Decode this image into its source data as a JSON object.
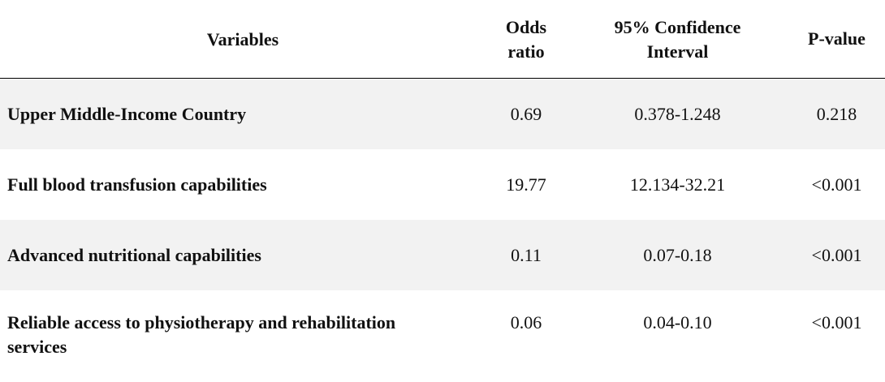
{
  "table": {
    "headers": {
      "variables": "Variables",
      "odds_ratio_line1": "Odds",
      "odds_ratio_line2": "ratio",
      "ci_line1": "95% Confidence",
      "ci_line2": "Interval",
      "p_value": "P-value"
    },
    "rows": [
      {
        "variable": "Upper Middle-Income Country",
        "odds_ratio": "0.69",
        "ci": "0.378-1.248",
        "p_value": "0.218"
      },
      {
        "variable": "Full blood transfusion capabilities",
        "odds_ratio": "19.77",
        "ci": "12.134-32.21",
        "p_value": "<0.001"
      },
      {
        "variable": "Advanced nutritional capabilities",
        "odds_ratio": "0.11",
        "ci": "0.07-0.18",
        "p_value": "<0.001"
      },
      {
        "variable_line1": "Reliable access to physiotherapy and rehabilitation",
        "variable_line2": "services",
        "odds_ratio": "0.06",
        "ci": "0.04-0.10",
        "p_value": "<0.001"
      }
    ],
    "colors": {
      "shaded_row": "#f2f2f2",
      "header_rule": "#000000",
      "text": "#111111"
    }
  }
}
